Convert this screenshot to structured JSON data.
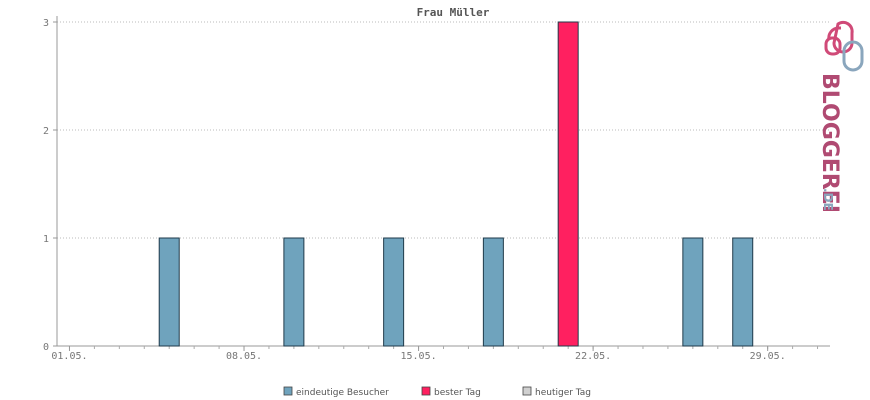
{
  "chart_data": {
    "type": "bar",
    "title": "Frau Müller",
    "y_ticks": [
      "0",
      "1",
      "2",
      "3"
    ],
    "ylim": [
      0,
      3
    ],
    "x_ticks": [
      {
        "day": 1,
        "label": "01.05."
      },
      {
        "day": 8,
        "label": "08.05."
      },
      {
        "day": 15,
        "label": "15.05."
      },
      {
        "day": 22,
        "label": "22.05."
      },
      {
        "day": 29,
        "label": "29.05."
      }
    ],
    "xlim": [
      0.5,
      31.5
    ],
    "grid": true,
    "legend_position": "bottom",
    "series": [
      {
        "name": "eindeutige Besucher",
        "color": "#6fa3bd",
        "points": [
          {
            "day": 5,
            "value": 1
          },
          {
            "day": 10,
            "value": 1
          },
          {
            "day": 14,
            "value": 1
          },
          {
            "day": 18,
            "value": 1
          },
          {
            "day": 26,
            "value": 1
          },
          {
            "day": 28,
            "value": 1
          }
        ]
      },
      {
        "name": "bester Tag",
        "color": "#ff2060",
        "points": [
          {
            "day": 21,
            "value": 3
          }
        ]
      },
      {
        "name": "heutiger Tag",
        "color": "#d0d0d0",
        "points": []
      }
    ]
  },
  "logo": {
    "text": "BLOGGEREI",
    "suffix": ".DE",
    "color_main": "#b04a72",
    "color_suffix": "#8aa6bd"
  }
}
